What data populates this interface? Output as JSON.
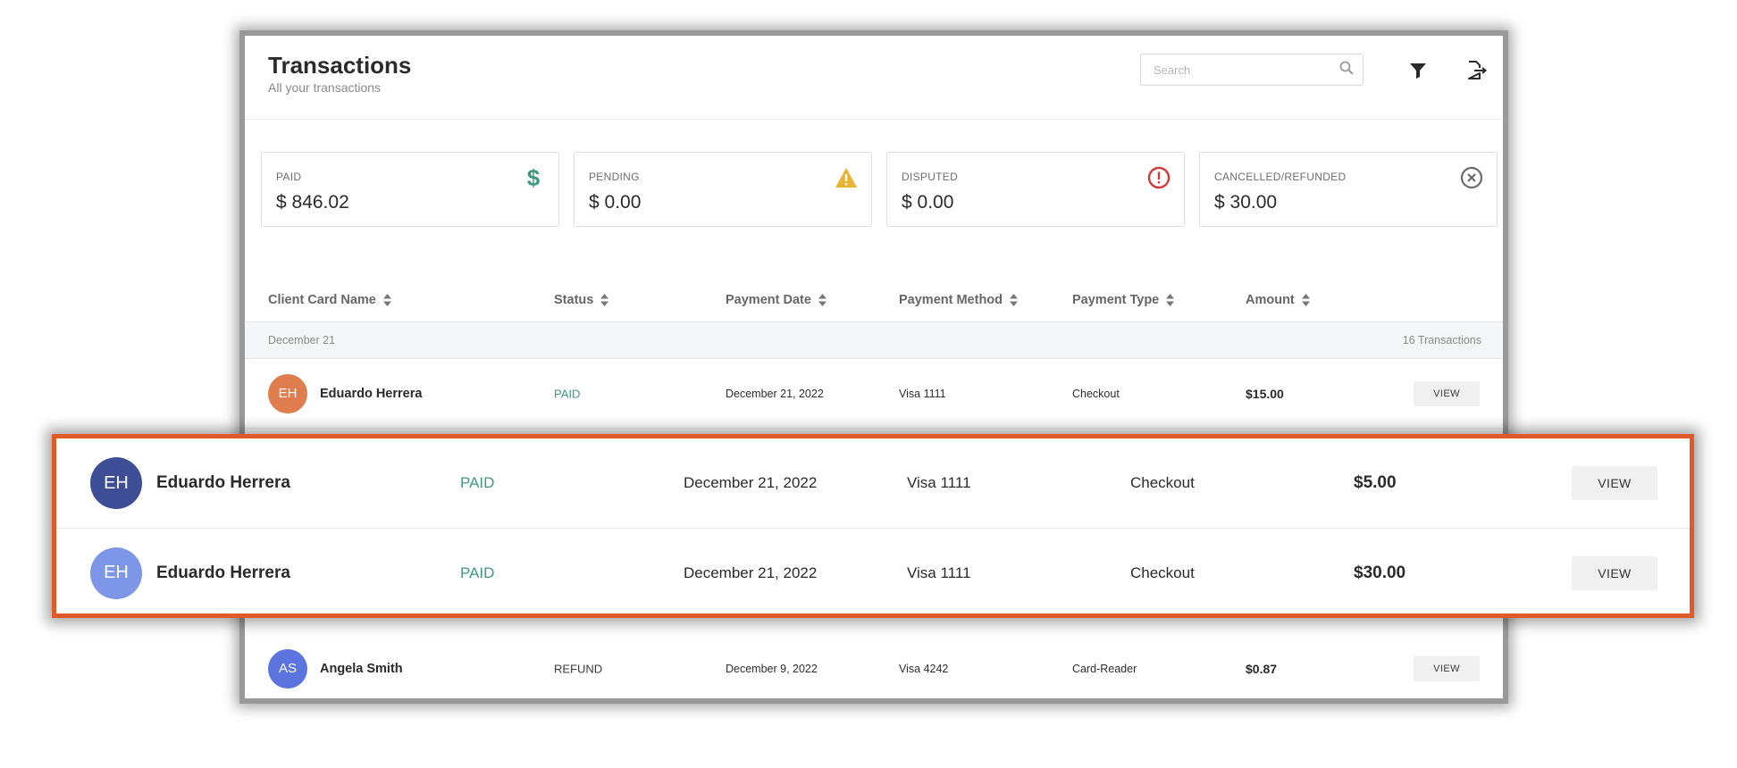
{
  "header": {
    "title": "Transactions",
    "subtitle": "All your transactions",
    "search_placeholder": "Search"
  },
  "cards": [
    {
      "label": "PAID",
      "value": "$ 846.02",
      "icon": "dollar-icon",
      "color": "#3d9a7b"
    },
    {
      "label": "PENDING",
      "value": "$ 0.00",
      "icon": "warning-icon",
      "color": "#e8b431"
    },
    {
      "label": "DISPUTED",
      "value": "$ 0.00",
      "icon": "alert-circle-icon",
      "color": "#d23b3b"
    },
    {
      "label": "CANCELLED/REFUNDED",
      "value": "$ 30.00",
      "icon": "x-circle-icon",
      "color": "#6b6b6b"
    }
  ],
  "table": {
    "columns": [
      "Client Card Name",
      "Status",
      "Payment Date",
      "Payment Method",
      "Payment Type",
      "Amount"
    ],
    "group": {
      "date": "December 21",
      "count": "16 Transactions"
    },
    "rows": [
      {
        "initials": "EH",
        "avatar_color": "#e07d4f",
        "name": "Eduardo Herrera",
        "status": "PAID",
        "status_color": "#3d9a7b",
        "date": "December 21, 2022",
        "method": "Visa 1111",
        "type": "Checkout",
        "amount": "$15.00",
        "action": "VIEW"
      },
      {
        "initials": "AS",
        "avatar_color": "#5b74e0",
        "name": "Angela Smith",
        "status": "REFUND",
        "status_color": "#3a3a3a",
        "date": "December 9, 2022",
        "method": "Visa 4242",
        "type": "Card-Reader",
        "amount": "$0.87",
        "action": "VIEW"
      }
    ]
  },
  "zoom": {
    "rows": [
      {
        "initials": "EH",
        "avatar_color": "#3d4d96",
        "name": "Eduardo Herrera",
        "status": "PAID",
        "status_color": "#3d9a7b",
        "date": "December 21, 2022",
        "method": "Visa 1111",
        "type": "Checkout",
        "amount": "$5.00",
        "action": "VIEW"
      },
      {
        "initials": "EH",
        "avatar_color": "#7d96e8",
        "name": "Eduardo Herrera",
        "status": "PAID",
        "status_color": "#3d9a7b",
        "date": "December 21, 2022",
        "method": "Visa 1111",
        "type": "Checkout",
        "amount": "$30.00",
        "action": "VIEW"
      }
    ]
  }
}
